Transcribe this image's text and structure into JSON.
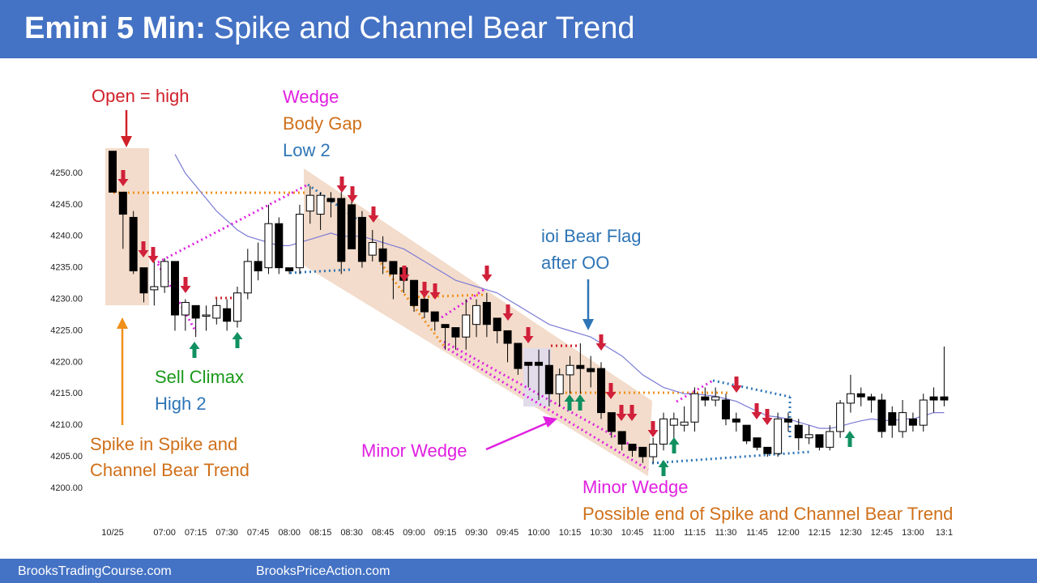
{
  "header": {
    "title_bold": "Emini 5 Min:",
    "title_rest": "Spike and Channel Bear Trend"
  },
  "chart_data": {
    "type": "candlestick",
    "categories": [
      "10/25",
      null,
      null,
      null,
      null,
      "07:00",
      null,
      null,
      "07:15",
      null,
      null,
      "07:30",
      null,
      null,
      "07:45",
      null,
      null,
      "08:00",
      null,
      null,
      "08:15",
      null,
      null,
      "08:30",
      null,
      null,
      "08:45",
      null,
      null,
      "09:00",
      null,
      null,
      "09:15",
      null,
      null,
      "09:30",
      null,
      null,
      "09:45",
      null,
      null,
      "10:00",
      null,
      null,
      "10:15",
      null,
      null,
      "10:30",
      null,
      null,
      "10:45",
      null,
      null,
      "11:00",
      null,
      null,
      "11:15",
      null,
      null,
      "11:30",
      null,
      null,
      "11:45",
      null,
      null,
      "12:00",
      null,
      null,
      "12:15",
      null,
      null,
      "12:30",
      null,
      null,
      "12:45",
      null,
      null,
      "13:00",
      null,
      null,
      "13:1"
    ],
    "open": [
      4253.5,
      4247,
      4243,
      4235,
      4231.5,
      4232,
      4236,
      4227.5,
      4229,
      4227.5,
      4227,
      4228.5,
      4226.5,
      4231,
      4236,
      4235,
      4242,
      4235,
      4235,
      4244,
      4243.5,
      4246,
      4246,
      4245,
      4243,
      4237,
      4238,
      4236,
      4235,
      4233,
      4230,
      4228,
      4226,
      4225.5,
      4224,
      4226,
      4229.5,
      4227,
      4225,
      4223,
      4220,
      4220,
      4219.5,
      4215,
      4218,
      4219.5,
      4219,
      4219,
      4212,
      4209,
      4207,
      4206.5,
      4205,
      4207,
      4210,
      4210,
      4210.5,
      4214.5,
      4214,
      4214,
      4211,
      4210,
      4208,
      4206.5,
      4205.5,
      4211,
      4210,
      4208,
      4208.5,
      4206.5,
      4209,
      4213.5,
      4215,
      4214.5,
      4214,
      4212,
      4209,
      4211,
      4210,
      4214.5,
      4214.5
    ],
    "high": [
      4253.5,
      4247,
      4244,
      4235,
      4236,
      4236.5,
      4236,
      4230,
      4229,
      4229,
      4230,
      4230,
      4232,
      4238,
      4239,
      4245,
      4243,
      4235,
      4245,
      4248,
      4247,
      4247,
      4247,
      4246,
      4244,
      4241,
      4240,
      4236,
      4235,
      4233,
      4231,
      4228,
      4226,
      4225.5,
      4230,
      4230,
      4231,
      4227,
      4225,
      4223,
      4220,
      4222,
      4222,
      4219,
      4221,
      4223,
      4221,
      4220,
      4212,
      4209,
      4207,
      4206.5,
      4208,
      4212,
      4212,
      4213,
      4216,
      4216,
      4216,
      4215,
      4212,
      4210,
      4208,
      4206.5,
      4212,
      4212,
      4211,
      4210,
      4208.5,
      4210,
      4214,
      4218,
      4216,
      4215,
      4215,
      4213,
      4214,
      4212,
      4215,
      4216,
      4222.5
    ],
    "low": [
      4247,
      4238,
      4234,
      4229.5,
      4229,
      4231,
      4225,
      4225,
      4224,
      4225,
      4226,
      4225,
      4225.5,
      4230,
      4233,
      4234,
      4234,
      4234,
      4234,
      4242,
      4241,
      4243,
      4234,
      4238,
      4235,
      4236,
      4234,
      4230,
      4231,
      4228,
      4227,
      4225,
      4222,
      4222,
      4222,
      4224,
      4224,
      4223,
      4220,
      4218,
      4216,
      4214,
      4213,
      4213,
      4215,
      4215,
      4216,
      4211,
      4208,
      4206,
      4205,
      4204,
      4204,
      4206,
      4208,
      4209,
      4209,
      4213,
      4213,
      4210,
      4209,
      4207,
      4206,
      4205,
      4205,
      4209,
      4206,
      4207,
      4206,
      4206,
      4208,
      4212,
      4213,
      4212,
      4208,
      4208,
      4208,
      4209,
      4209,
      4212,
      4213
    ],
    "close": [
      4247,
      4243.5,
      4234.5,
      4231,
      4232,
      4236,
      4227.5,
      4229.5,
      4227,
      4227.5,
      4229,
      4226.5,
      4231,
      4236,
      4234.5,
      4242,
      4235,
      4234.5,
      4243.5,
      4246.5,
      4246.5,
      4245.5,
      4236,
      4238,
      4236,
      4239,
      4236,
      4234,
      4233,
      4229,
      4228,
      4226.5,
      4225.5,
      4224,
      4227.5,
      4229,
      4226,
      4225,
      4223,
      4219,
      4219.5,
      4219.5,
      4215,
      4218,
      4219.5,
      4219,
      4218.5,
      4212,
      4209,
      4207,
      4206,
      4205,
      4207,
      4211,
      4211,
      4210.5,
      4215,
      4214,
      4214.5,
      4211,
      4210.5,
      4207.5,
      4206.5,
      4205.5,
      4211,
      4210.5,
      4208,
      4208.5,
      4206.5,
      4209,
      4213.5,
      4215,
      4214.5,
      4214,
      4209,
      4210,
      4212,
      4210,
      4214,
      4214,
      4214
    ],
    "ema": {
      "color": "#7b7bd6",
      "values": [
        null,
        null,
        null,
        null,
        null,
        null,
        4253,
        4250,
        4248,
        4246,
        4244,
        4242.5,
        4241,
        4240,
        4239.5,
        4239,
        4238.5,
        4238.5,
        4239,
        4239.5,
        4240,
        4240.5,
        4240,
        4240,
        4240,
        4239.5,
        4239,
        4238.5,
        4238,
        4237,
        4236,
        4235,
        4234,
        4233,
        4232.5,
        4232,
        4231.5,
        4231,
        4230,
        4229,
        4228,
        4227,
        4226,
        4225.5,
        4225,
        4224.5,
        4224,
        4223,
        4222,
        4221,
        4219.5,
        4218,
        4217,
        4216,
        4215.5,
        4215,
        4215,
        4214.8,
        4214.6,
        4214.2,
        4213.8,
        4213,
        4212.2,
        4211.5,
        4211.3,
        4211,
        4210.5,
        4210,
        4209.5,
        4209.5,
        4209.8,
        4210.3,
        4210.7,
        4211,
        4210.8,
        4210.7,
        4211,
        4211,
        4211.5,
        4212,
        4212
      ]
    },
    "up_color": "#ffffff",
    "down_color": "#000000",
    "ylim": [
      4198,
      4256
    ],
    "yticks": [
      {
        "value": 4200,
        "label": "4200.00"
      },
      {
        "value": 4205,
        "label": "4205.00"
      },
      {
        "value": 4210,
        "label": "4210.00"
      },
      {
        "value": 4215,
        "label": "4215.00"
      },
      {
        "value": 4220,
        "label": "4220.00"
      },
      {
        "value": 4225,
        "label": "4225.00"
      },
      {
        "value": 4230,
        "label": "4230.00"
      },
      {
        "value": 4235,
        "label": "4235.00"
      },
      {
        "value": 4240,
        "label": "4240.00"
      },
      {
        "value": 4245,
        "label": "4245.00"
      },
      {
        "value": 4250,
        "label": "4250.00"
      }
    ],
    "annotations": [
      {
        "text": "Open = high",
        "color": "#d0202a"
      },
      {
        "text": "Wedge",
        "color": "#e020e0"
      },
      {
        "text": "Body Gap",
        "color": "#d0701a"
      },
      {
        "text": "Low 2",
        "color": "#2e75b6"
      },
      {
        "text": "ioi Bear Flag",
        "color": "#2e75b6"
      },
      {
        "text": "after OO",
        "color": "#2e75b6"
      },
      {
        "text": "Sell Climax",
        "color": "#1a9a1a"
      },
      {
        "text": "High 2",
        "color": "#2e75b6"
      },
      {
        "text": "Spike in Spike and",
        "color": "#d0701a"
      },
      {
        "text": "Channel Bear Trend",
        "color": "#d0701a"
      },
      {
        "text": "Minor Wedge",
        "color": "#e020e0"
      },
      {
        "text": "Minor Wedge",
        "color": "#e020e0"
      },
      {
        "text": "Possible end of Spike and Channel Bear Trend",
        "color": "#d0701a"
      }
    ]
  },
  "footer": {
    "left": "BrooksTradingCourse.com",
    "right": "BrooksPriceAction.com"
  }
}
